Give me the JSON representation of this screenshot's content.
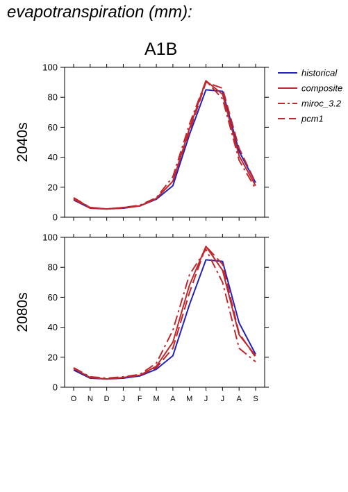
{
  "header": {
    "title": "evapotranspiration (mm):",
    "scenario": "A1B"
  },
  "colors": {
    "historical": "#2222bb",
    "composite": "#c0272d",
    "miroc_3.2": "#c0272d",
    "pcm1": "#c0272d"
  },
  "chart_data": [
    {
      "type": "line",
      "title": "A1B",
      "ylabel": "2040s",
      "xlabel": "",
      "categories": [
        "O",
        "N",
        "D",
        "J",
        "F",
        "M",
        "A",
        "M",
        "J",
        "J",
        "A",
        "S"
      ],
      "ylim": [
        0,
        100
      ],
      "yticks": [
        0,
        20,
        40,
        60,
        80,
        100
      ],
      "legend": "right, outside plot",
      "series": [
        {
          "name": "historical",
          "style": "solid",
          "values": [
            11.5,
            6,
            5.5,
            6,
            7.5,
            12,
            21,
            55,
            85,
            84,
            44,
            23
          ]
        },
        {
          "name": "composite",
          "style": "solid",
          "values": [
            12.5,
            6.5,
            5.5,
            6.5,
            7.5,
            12.5,
            24,
            59,
            91,
            82,
            41,
            21
          ]
        },
        {
          "name": "miroc_3.2",
          "style": "dash-dot",
          "values": [
            13,
            6.5,
            5.5,
            6.5,
            8,
            13,
            27,
            62,
            91,
            79,
            38,
            19
          ]
        },
        {
          "name": "pcm1",
          "style": "dash",
          "values": [
            12,
            6,
            5.5,
            6,
            7.5,
            12.5,
            24,
            57,
            90,
            86,
            46,
            23
          ]
        }
      ]
    },
    {
      "type": "line",
      "title": "",
      "ylabel": "2080s",
      "xlabel": "",
      "categories": [
        "O",
        "N",
        "D",
        "J",
        "F",
        "M",
        "A",
        "M",
        "J",
        "J",
        "A",
        "S"
      ],
      "ylim": [
        0,
        100
      ],
      "yticks": [
        0,
        20,
        40,
        60,
        80,
        100
      ],
      "series": [
        {
          "name": "historical",
          "style": "solid",
          "values": [
            11.5,
            6,
            5.5,
            6,
            7.5,
            12,
            21,
            55,
            85,
            84,
            43,
            22
          ]
        },
        {
          "name": "composite",
          "style": "solid",
          "values": [
            12.5,
            6.5,
            5.5,
            6.5,
            8,
            14,
            30,
            68,
            94,
            78,
            35,
            21
          ]
        },
        {
          "name": "miroc_3.2",
          "style": "dash-dot",
          "values": [
            13,
            7,
            6,
            7,
            8.5,
            16,
            38,
            75,
            92,
            70,
            26,
            17
          ]
        },
        {
          "name": "pcm1",
          "style": "dash",
          "values": [
            12.5,
            6.5,
            5.5,
            6.5,
            8,
            13,
            26,
            63,
            94,
            82,
            36,
            20
          ]
        }
      ]
    }
  ]
}
